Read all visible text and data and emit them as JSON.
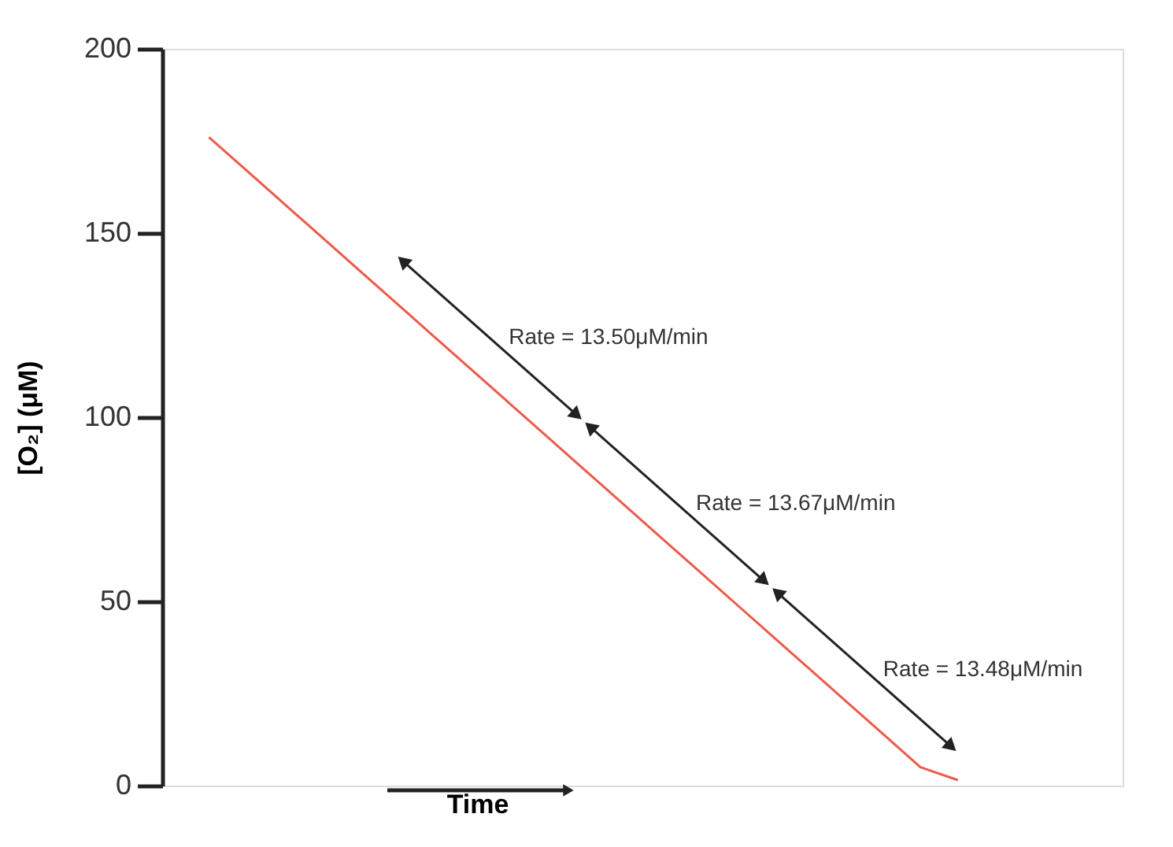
{
  "chart_data": {
    "type": "line",
    "xlabel": "Time",
    "ylabel": "[O₂] (μM)",
    "categories": [
      null,
      null,
      null,
      null,
      null,
      null,
      null,
      null,
      null,
      null,
      null,
      null,
      null,
      null,
      null,
      null,
      null,
      null,
      null,
      null,
      null
    ],
    "series": [
      {
        "color": "#ee5a4a",
        "values": [
          176,
          167,
          158,
          149,
          140,
          131,
          122,
          113,
          104,
          95,
          86,
          77,
          68,
          59,
          50,
          41,
          32,
          23,
          14,
          5,
          1.5
        ]
      }
    ],
    "ylim": [
      0,
      200
    ],
    "yticks": [
      0,
      50,
      100,
      150,
      200
    ],
    "annotations": [
      "Rate = 13.50μM/min",
      "Rate = 13.67μM/min",
      "Rate = 13.48μM/min"
    ],
    "grid": false,
    "legend": false,
    "marker": "none",
    "line_style": "solid",
    "tick_labels": "y"
  }
}
